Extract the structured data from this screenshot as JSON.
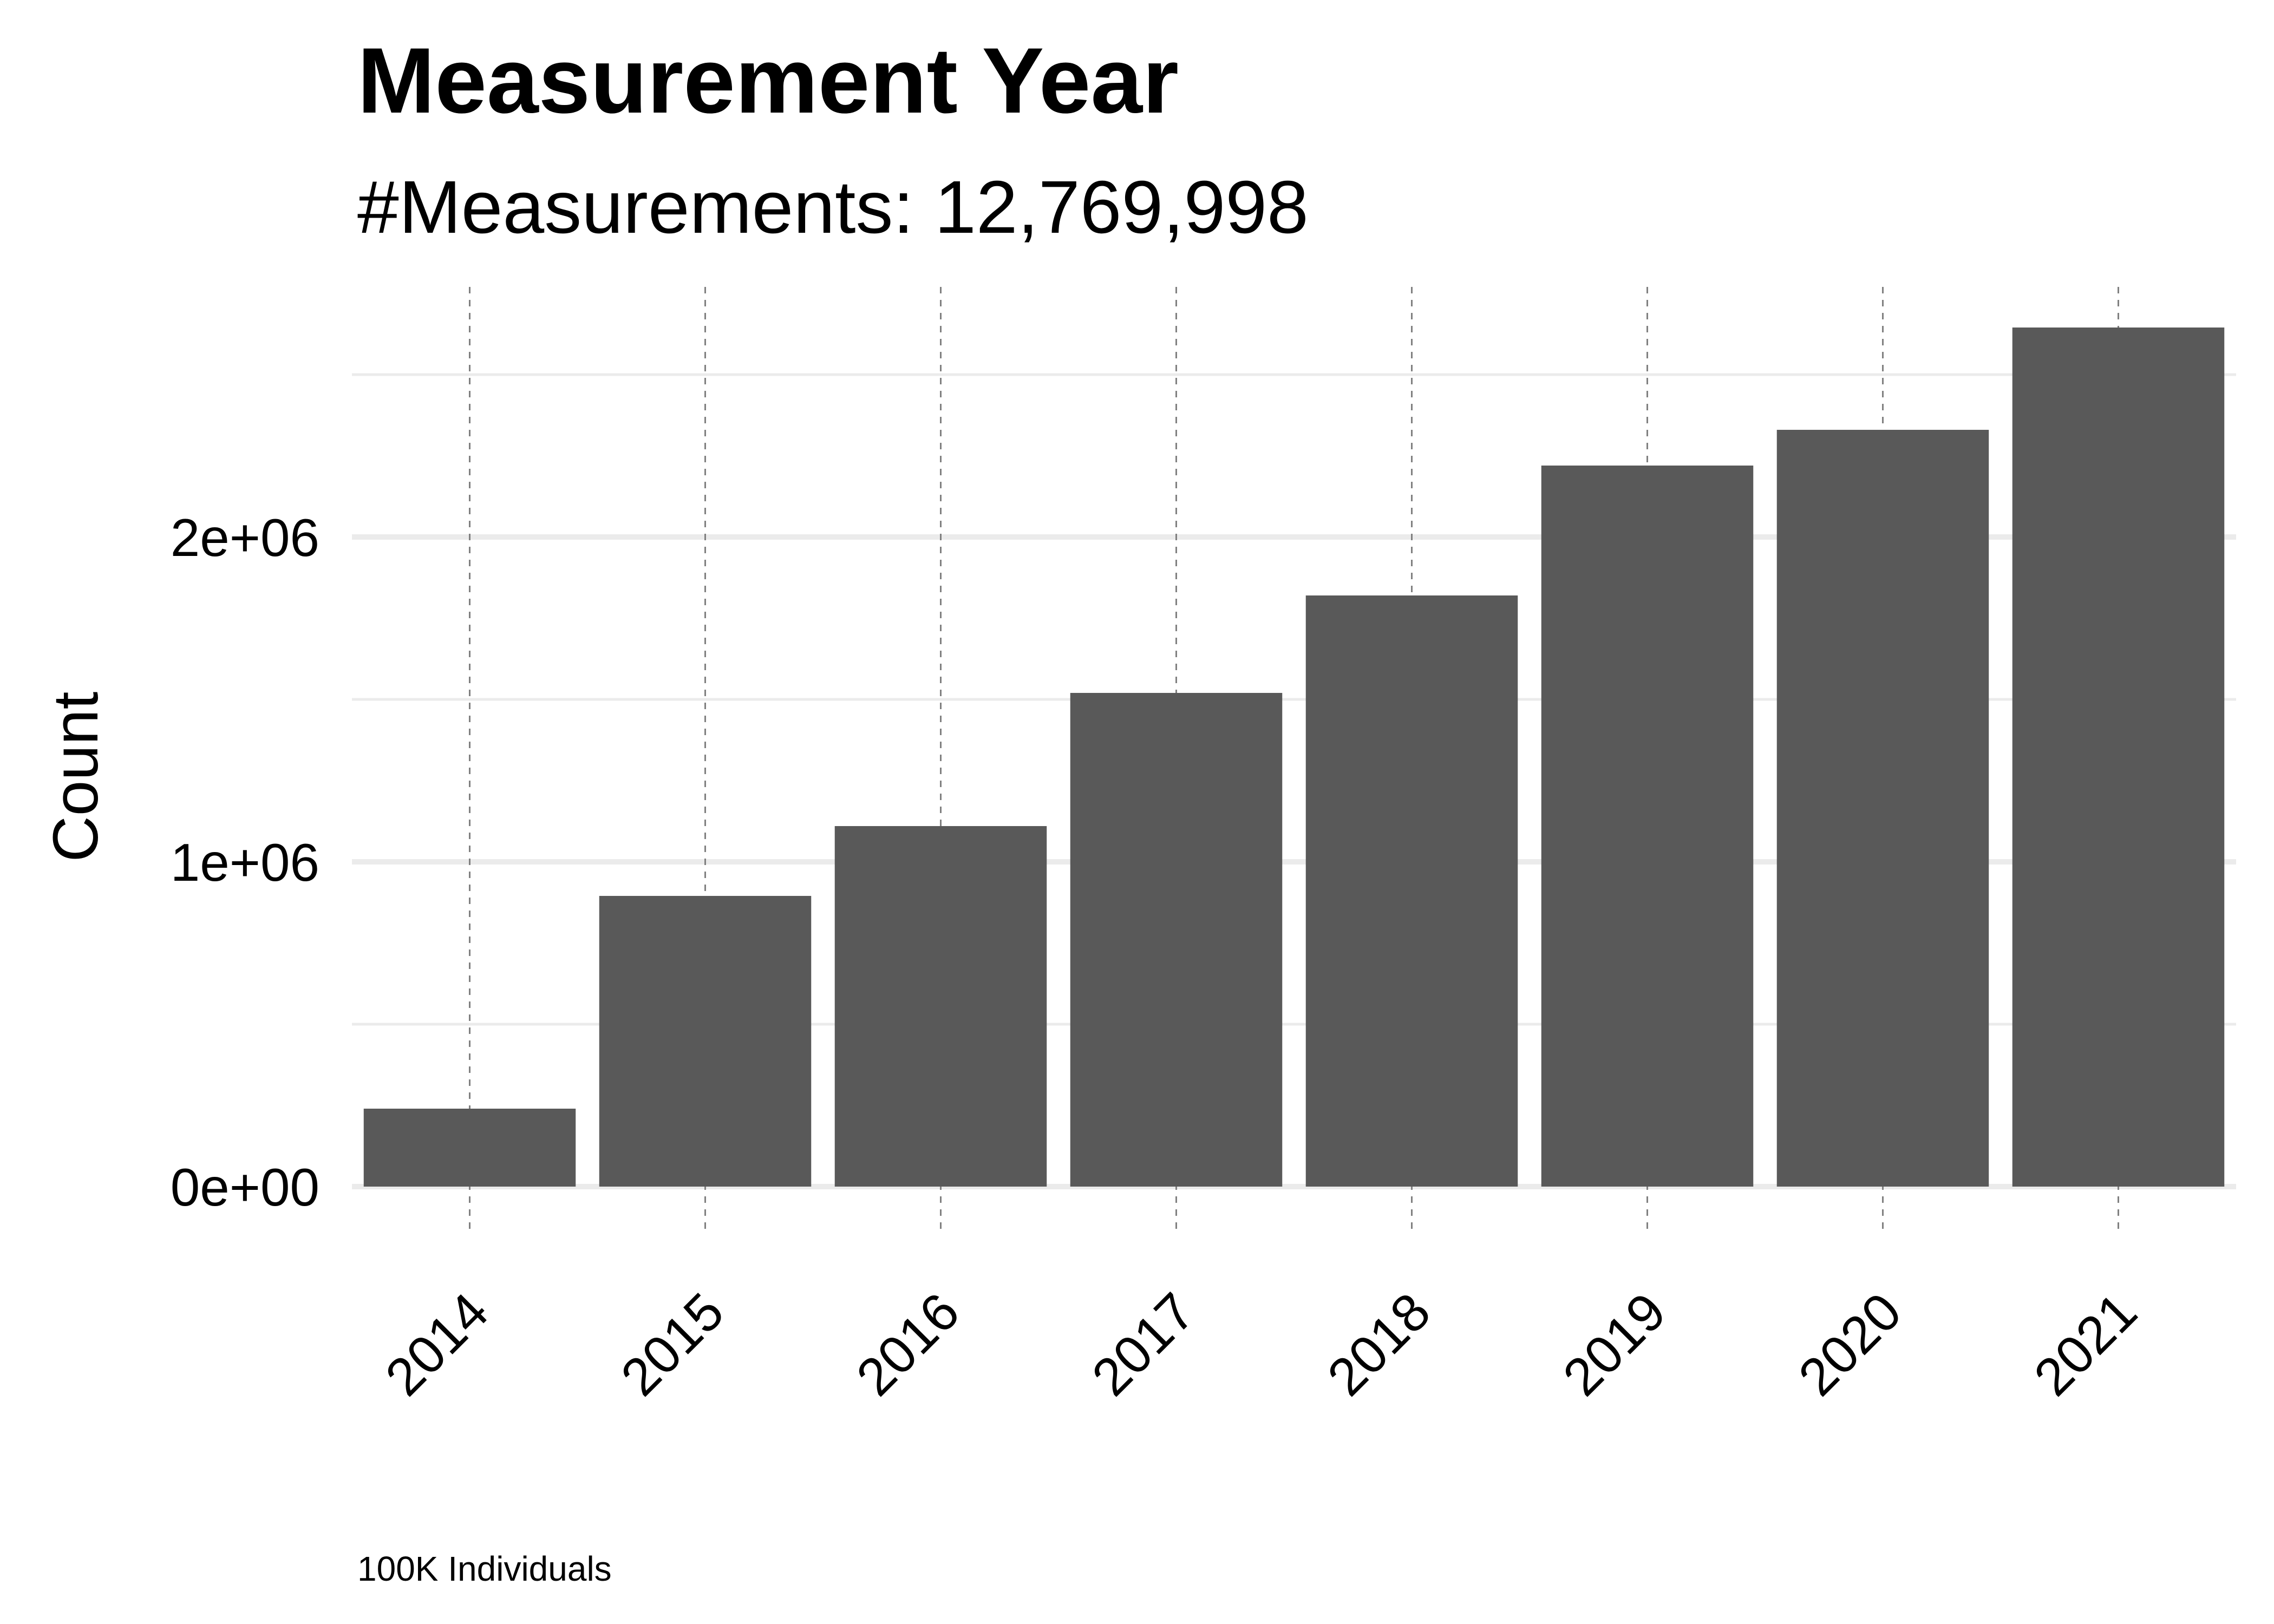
{
  "chart_data": {
    "type": "bar",
    "title": "Measurement Year",
    "subtitle": "#Measurements: 12,769,998",
    "xlabel": "",
    "ylabel": "Count",
    "caption": "100K Individuals",
    "categories": [
      "2014",
      "2015",
      "2016",
      "2017",
      "2018",
      "2019",
      "2020",
      "2021"
    ],
    "values": [
      240000,
      895000,
      1110000,
      1520000,
      1820000,
      2220000,
      2330000,
      2645000
    ],
    "ylim": [
      -130000,
      2770000
    ],
    "yticks": [
      0,
      1000000,
      2000000
    ],
    "ytick_labels": [
      "0e+00",
      "1e+06",
      "2e+06"
    ],
    "grid": true,
    "bar_color": "#595959",
    "gridline_color": "#ebebeb",
    "vertical_line_color": "#808080"
  }
}
